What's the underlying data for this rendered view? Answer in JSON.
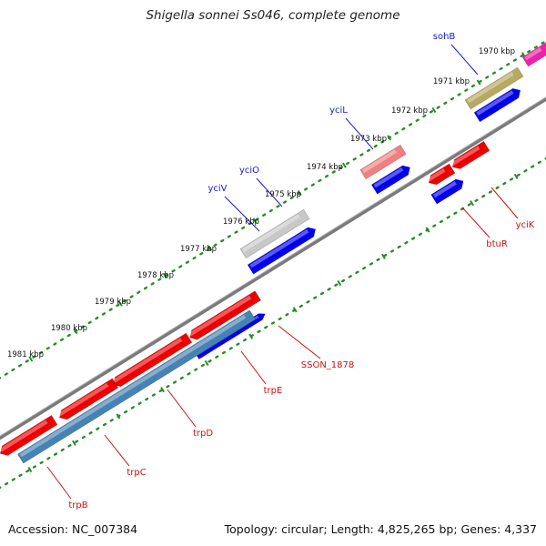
{
  "title": "Shigella sonnei Ss046, complete genome",
  "footer": {
    "accession": "Accession: NC_007384",
    "summary": "Topology: circular; Length: 4,825,265 bp; Genes: 4,337"
  },
  "colors": {
    "backbone": "#7f7f7f",
    "kbp_dots": "#2a8a2a",
    "forward_cds": "#0000ee",
    "reverse_cds": "#ee0000",
    "gene_label_forward": "#1a1acc",
    "gene_label_reverse": "#cc1111",
    "steelblue": "#4682b4",
    "magenta": "#ee22aa"
  },
  "scale": {
    "ticks": [
      {
        "label": "1970 kbp"
      },
      {
        "label": "1971 kbp"
      },
      {
        "label": "1972 kbp"
      },
      {
        "label": "1973 kbp"
      },
      {
        "label": "1974 kbp"
      },
      {
        "label": "1975 kbp"
      },
      {
        "label": "1976 kbp"
      },
      {
        "label": "1977 kbp"
      },
      {
        "label": "1978 kbp"
      },
      {
        "label": "1979 kbp"
      },
      {
        "label": "1980 kbp"
      },
      {
        "label": "1981 kbp"
      }
    ]
  },
  "genes": [
    {
      "name": "sohB",
      "strand": "forward"
    },
    {
      "name": "yciL",
      "strand": "forward"
    },
    {
      "name": "yciO",
      "strand": "forward"
    },
    {
      "name": "yciV",
      "strand": "forward"
    },
    {
      "name": "yciK",
      "strand": "reverse"
    },
    {
      "name": "btuR",
      "strand": "reverse"
    },
    {
      "name": "SSON_1878",
      "strand": "reverse"
    },
    {
      "name": "trpE",
      "strand": "reverse"
    },
    {
      "name": "trpD",
      "strand": "reverse"
    },
    {
      "name": "trpC",
      "strand": "reverse"
    },
    {
      "name": "trpB",
      "strand": "reverse"
    }
  ]
}
